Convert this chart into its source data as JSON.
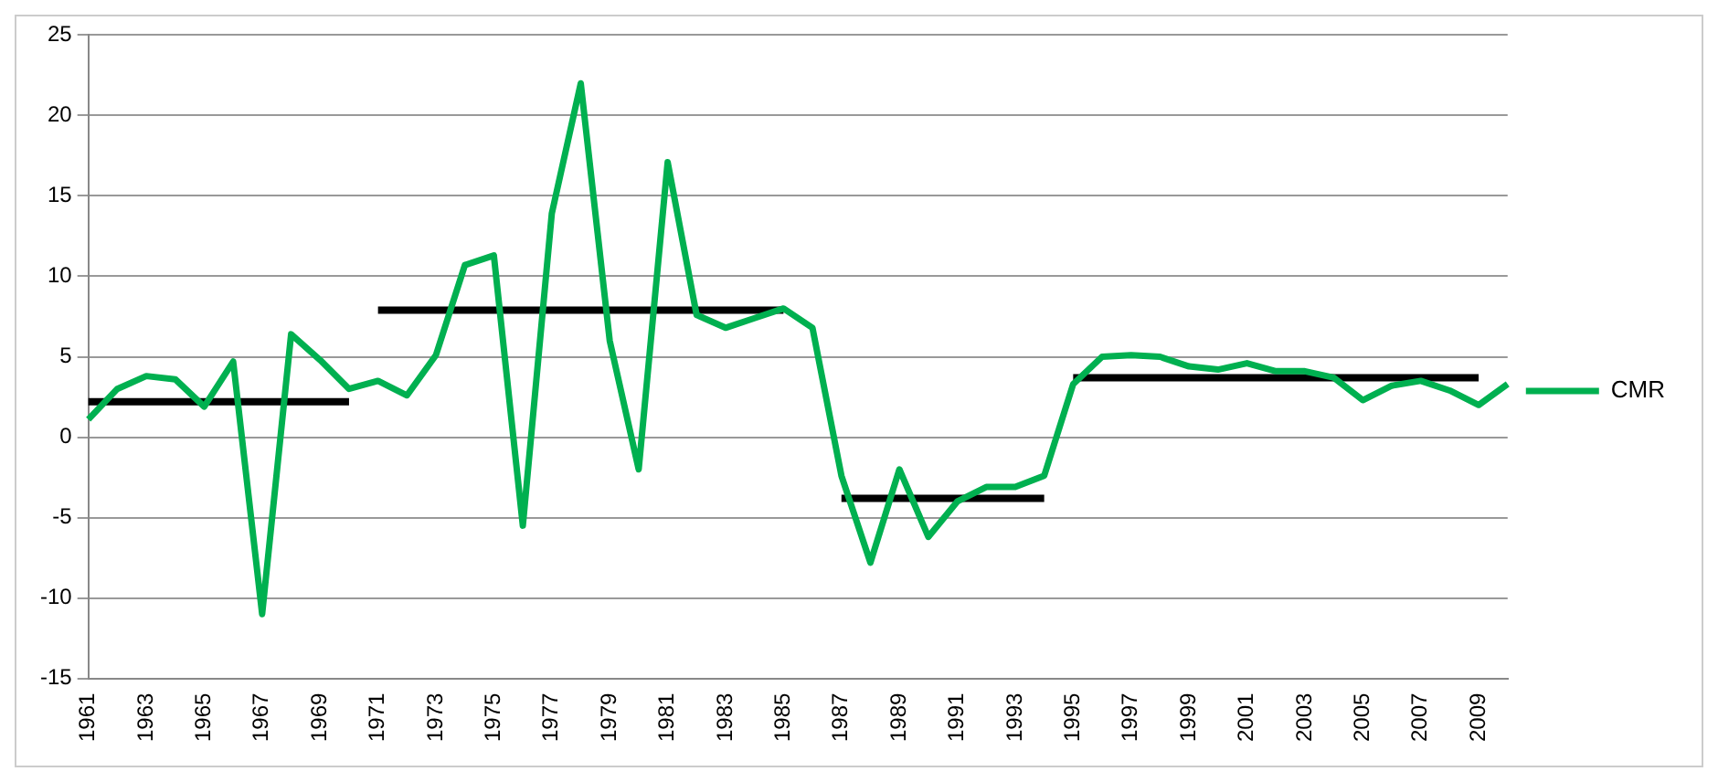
{
  "chart_data": {
    "type": "line",
    "categories": [
      "1961",
      null,
      "1963",
      null,
      "1965",
      null,
      "1967",
      null,
      "1969",
      null,
      "1971",
      null,
      "1973",
      null,
      "1975",
      null,
      "1977",
      null,
      "1979",
      null,
      "1981",
      null,
      "1983",
      null,
      "1985",
      null,
      "1987",
      null,
      "1989",
      null,
      "1991",
      null,
      "1993",
      null,
      "1995",
      null,
      "1997",
      null,
      "1999",
      null,
      "2001",
      null,
      "2003",
      null,
      "2005",
      null,
      "2007",
      null,
      "2009",
      null
    ],
    "series": [
      {
        "name": "CMR",
        "color": "#00b050",
        "values": [
          1.1,
          3.0,
          3.8,
          3.6,
          1.9,
          4.7,
          -11.0,
          6.4,
          4.8,
          3.0,
          3.5,
          2.6,
          5.1,
          10.7,
          11.3,
          -5.5,
          13.9,
          22.0,
          6.0,
          -2.0,
          17.1,
          7.6,
          6.8,
          7.4,
          8.0,
          6.8,
          -2.4,
          -7.8,
          -2.0,
          -6.2,
          -4.0,
          -3.1,
          -3.1,
          -2.4,
          3.3,
          5.0,
          5.1,
          5.0,
          4.4,
          4.2,
          4.6,
          4.1,
          4.1,
          3.7,
          2.3,
          3.2,
          3.5,
          2.9,
          2.0,
          3.3
        ]
      },
      {
        "color": "#000000",
        "values": [
          2.2,
          2.2,
          2.2,
          2.2,
          2.2,
          2.2,
          2.2,
          2.2,
          2.2,
          2.2,
          null,
          null,
          null,
          null,
          null,
          null,
          null,
          null,
          null,
          null,
          null,
          null,
          null,
          null,
          null,
          null,
          null,
          null,
          null,
          null,
          null,
          null,
          null,
          null,
          null,
          null,
          null,
          null,
          null,
          null,
          null,
          null,
          null,
          null,
          null,
          null,
          null,
          null,
          null,
          null
        ]
      },
      {
        "color": "#000000",
        "values": [
          null,
          null,
          null,
          null,
          null,
          null,
          null,
          null,
          null,
          null,
          7.9,
          7.9,
          7.9,
          7.9,
          7.9,
          7.9,
          7.9,
          7.9,
          7.9,
          7.9,
          7.9,
          7.9,
          7.9,
          7.9,
          7.9,
          null,
          null,
          null,
          null,
          null,
          null,
          null,
          null,
          null,
          null,
          null,
          null,
          null,
          null,
          null,
          null,
          null,
          null,
          null,
          null,
          null,
          null,
          null,
          null,
          null
        ]
      },
      {
        "color": "#000000",
        "values": [
          null,
          null,
          null,
          null,
          null,
          null,
          null,
          null,
          null,
          null,
          null,
          null,
          null,
          null,
          null,
          null,
          null,
          null,
          null,
          null,
          null,
          null,
          null,
          null,
          null,
          null,
          -3.8,
          -3.8,
          -3.8,
          -3.8,
          -3.8,
          -3.8,
          -3.8,
          -3.8,
          null,
          null,
          null,
          null,
          null,
          null,
          null,
          null,
          null,
          null,
          null,
          null,
          null,
          null,
          null,
          null
        ]
      },
      {
        "color": "#000000",
        "values": [
          null,
          null,
          null,
          null,
          null,
          null,
          null,
          null,
          null,
          null,
          null,
          null,
          null,
          null,
          null,
          null,
          null,
          null,
          null,
          null,
          null,
          null,
          null,
          null,
          null,
          null,
          null,
          null,
          null,
          null,
          null,
          null,
          null,
          null,
          3.7,
          3.7,
          3.7,
          3.7,
          3.7,
          3.7,
          3.7,
          3.7,
          3.7,
          3.7,
          3.7,
          3.7,
          3.7,
          3.7,
          3.7,
          null
        ]
      }
    ],
    "ylim": [
      -15,
      25
    ],
    "yticks": [
      -15,
      -10,
      -5,
      0,
      5,
      10,
      15,
      20,
      25
    ],
    "grid": "y",
    "legend": "right",
    "marker": "none",
    "line_style": "solid"
  }
}
